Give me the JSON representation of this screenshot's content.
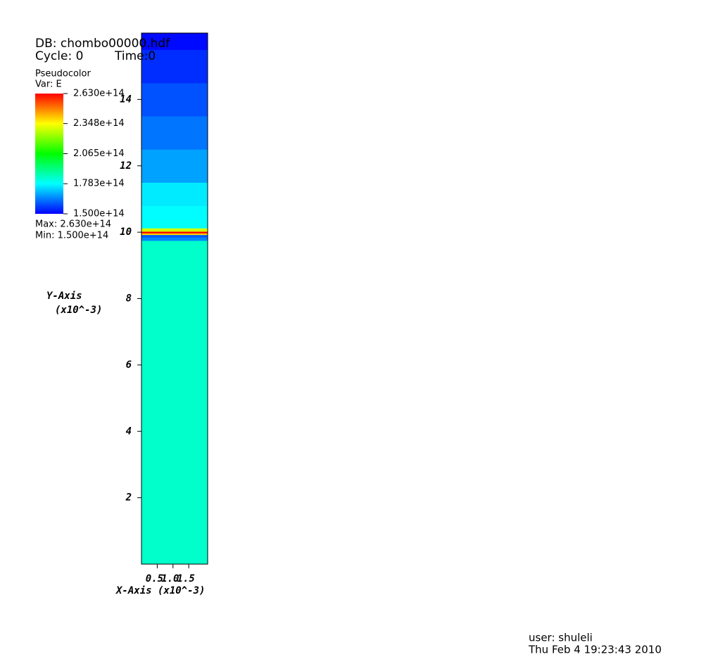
{
  "chart_data": {
    "type": "pseudocolor",
    "db": "DB: chombo00000.hdf",
    "cycle": "Cycle: 0",
    "time": "Time:0",
    "plot_name": "Pseudocolor",
    "variable": "Var: E",
    "max_text": "Max:  2.630e+14",
    "min_text": "Min:  1.500e+14",
    "y_label": "Y-Axis",
    "y_units": "(x10^-3)",
    "x_label": "X-Axis (x10^-3)",
    "user": "user: shuleli",
    "date": "Thu Feb  4 19:23:43 2010",
    "xlim": [
      0,
      2.1
    ],
    "ylim": [
      0,
      16
    ],
    "xticks": [
      0.5,
      {
        "value": 1,
        "label": "1.0"
      },
      1.5
    ],
    "yticks": [
      2,
      4,
      6,
      8,
      10,
      12,
      14
    ],
    "colorbar_lim": [
      150000000000000.0,
      263000000000000.0
    ],
    "colorbar_ticks": [
      {
        "value": 150000000000000.0,
        "label": "1.500e+14"
      },
      {
        "value": 178300000000000.0,
        "label": "1.783e+14"
      },
      {
        "value": 206500000000000.0,
        "label": "2.065e+14"
      },
      {
        "value": 234800000000000.0,
        "label": "2.348e+14"
      },
      {
        "value": 263000000000000.0,
        "label": "2.630e+14"
      }
    ],
    "colormap": [
      "#0000ff",
      "#00ffff",
      "#00ff00",
      "#ffff00",
      "#ff0000"
    ],
    "profile": {
      "y": [
        0,
        9.7,
        9.8,
        9.9,
        9.95,
        10.0,
        10.05,
        10.2,
        10.6,
        11,
        12,
        13,
        14,
        15,
        16
      ],
      "values": [
        184000000000000.0,
        184000000000000.0,
        165000000000000.0,
        160000000000000.0,
        240000000000000.0,
        263000000000000.0,
        230000000000000.0,
        179000000000000.0,
        178000000000000.0,
        176000000000000.0,
        168000000000000.0,
        163000000000000.0,
        159000000000000.0,
        155000000000000.0,
        151000000000000.0
      ]
    }
  }
}
